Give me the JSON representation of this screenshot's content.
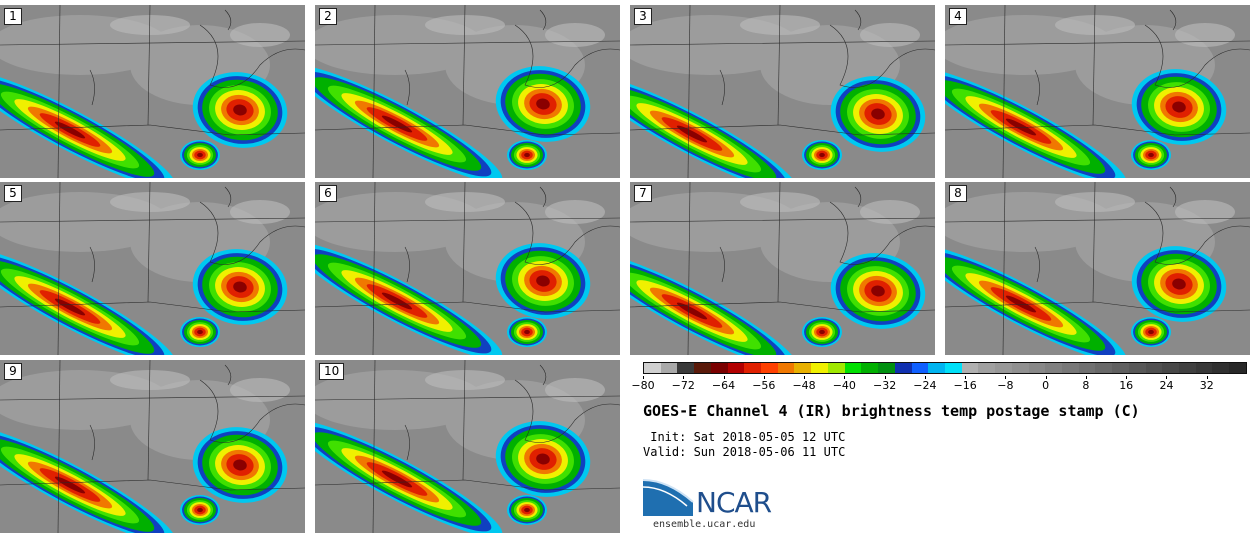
{
  "panels": [
    "1",
    "2",
    "3",
    "4",
    "5",
    "6",
    "7",
    "8",
    "9",
    "10"
  ],
  "colorbar": {
    "colors": [
      "#d0d0d0",
      "#a9a9a9",
      "#3a3a3a",
      "#5a1a0a",
      "#7a0000",
      "#b20000",
      "#e02000",
      "#ff4000",
      "#f07800",
      "#e8b000",
      "#f0f000",
      "#a0e800",
      "#00e000",
      "#00b000",
      "#009010",
      "#1030b0",
      "#1060ff",
      "#00b4f0",
      "#00e0f8",
      "#b0b0b0",
      "#a0a0a0",
      "#989898",
      "#909090",
      "#888888",
      "#808080",
      "#787878",
      "#707070",
      "#686868",
      "#606060",
      "#585858",
      "#505050",
      "#484848",
      "#404040",
      "#383838",
      "#303030",
      "#282828"
    ],
    "tick_labels": [
      "−80",
      "−72",
      "−64",
      "−56",
      "−48",
      "−40",
      "−32",
      "−24",
      "−16",
      "−8",
      "0",
      "8",
      "16",
      "24",
      "32"
    ],
    "tick_values": [
      -80,
      -72,
      -64,
      -56,
      -48,
      -40,
      -32,
      -24,
      -16,
      -8,
      0,
      8,
      16,
      24,
      32
    ],
    "min": -80,
    "max": 40
  },
  "title": "GOES-E Channel 4 (IR) brightness temp postage stamp (C)",
  "init": " Init: Sat 2018-05-05 12 UTC",
  "valid": "Valid: Sun 2018-05-06 11 UTC",
  "logo_text": "NCAR",
  "url": "ensemble.ucar.edu"
}
